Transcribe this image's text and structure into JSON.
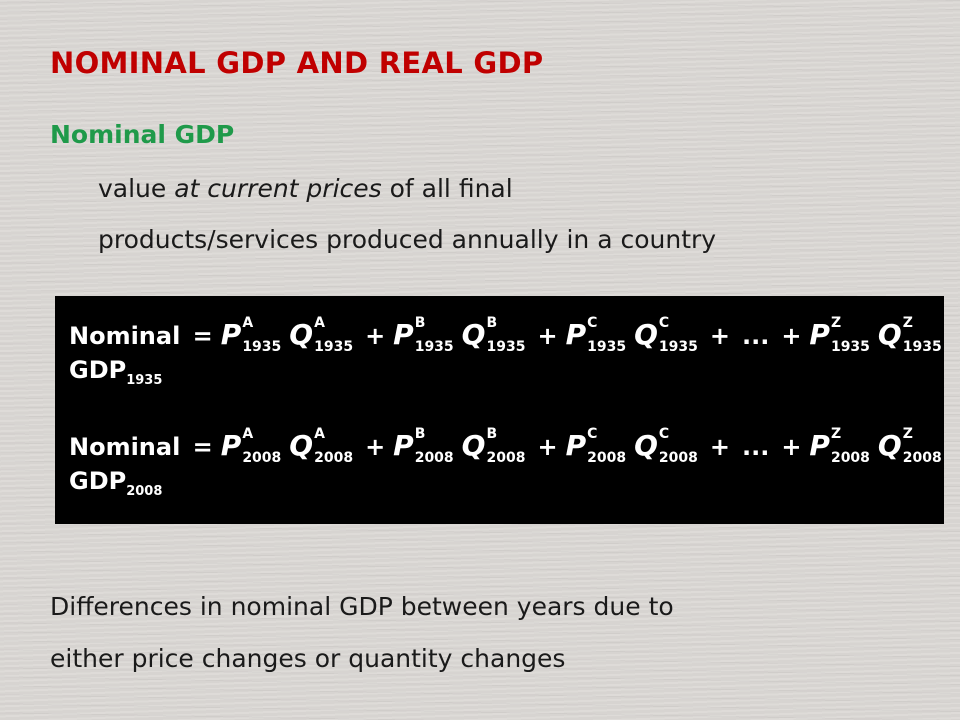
{
  "slide": {
    "title": "NOMINAL GDP AND REAL GDP",
    "subtitle": "Nominal GDP",
    "definition": {
      "line1_pre": "value ",
      "line1_em": "at current prices",
      "line1_post": " of all final",
      "line2": "products/services produced annually in a country"
    },
    "formula": {
      "rows": [
        {
          "label": "Nominal",
          "eq": "=",
          "gdp": "GDP",
          "year": "1935",
          "terms": [
            {
              "p": "P",
              "q": "Q",
              "sup": "A"
            },
            {
              "p": "P",
              "q": "Q",
              "sup": "B"
            },
            {
              "p": "P",
              "q": "Q",
              "sup": "C"
            },
            {
              "ellipsis": "..."
            },
            {
              "p": "P",
              "q": "Q",
              "sup": "Z"
            }
          ]
        },
        {
          "label": "Nominal",
          "eq": "=",
          "gdp": "GDP",
          "year": "2008",
          "terms": [
            {
              "p": "P",
              "q": "Q",
              "sup": "A"
            },
            {
              "p": "P",
              "q": "Q",
              "sup": "B"
            },
            {
              "p": "P",
              "q": "Q",
              "sup": "C"
            },
            {
              "ellipsis": "..."
            },
            {
              "p": "P",
              "q": "Q",
              "sup": "Z"
            }
          ]
        }
      ],
      "plus": "+"
    },
    "bottom": {
      "line1": "Differences in nominal GDP between years due to",
      "line2": "either price changes or quantity changes"
    }
  }
}
